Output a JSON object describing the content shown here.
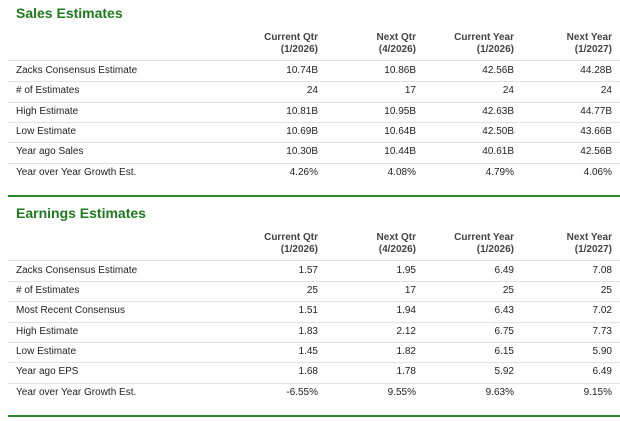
{
  "sections": [
    {
      "title": "Sales Estimates",
      "headers": [
        [
          "Current Qtr",
          "(1/2026)"
        ],
        [
          "Next Qtr",
          "(4/2026)"
        ],
        [
          "Current Year",
          "(1/2026)"
        ],
        [
          "Next Year",
          "(1/2027)"
        ]
      ],
      "rows": [
        [
          "Zacks Consensus Estimate",
          "10.74B",
          "10.86B",
          "42.56B",
          "44.28B"
        ],
        [
          "# of Estimates",
          "24",
          "17",
          "24",
          "24"
        ],
        [
          "High Estimate",
          "10.81B",
          "10.95B",
          "42.63B",
          "44.77B"
        ],
        [
          "Low Estimate",
          "10.69B",
          "10.64B",
          "42.50B",
          "43.66B"
        ],
        [
          "Year ago Sales",
          "10.30B",
          "10.44B",
          "40.61B",
          "42.56B"
        ],
        [
          "Year over Year Growth Est.",
          "4.26%",
          "4.08%",
          "4.79%",
          "4.06%"
        ]
      ]
    },
    {
      "title": "Earnings Estimates",
      "headers": [
        [
          "Current Qtr",
          "(1/2026)"
        ],
        [
          "Next Qtr",
          "(4/2026)"
        ],
        [
          "Current Year",
          "(1/2026)"
        ],
        [
          "Next Year",
          "(1/2027)"
        ]
      ],
      "rows": [
        [
          "Zacks Consensus Estimate",
          "1.57",
          "1.95",
          "6.49",
          "7.08"
        ],
        [
          "# of Estimates",
          "25",
          "17",
          "25",
          "25"
        ],
        [
          "Most Recent Consensus",
          "1.51",
          "1.94",
          "6.43",
          "7.02"
        ],
        [
          "High Estimate",
          "1.83",
          "2.12",
          "6.75",
          "7.73"
        ],
        [
          "Low Estimate",
          "1.45",
          "1.82",
          "6.15",
          "5.90"
        ],
        [
          "Year ago EPS",
          "1.68",
          "1.78",
          "5.92",
          "6.49"
        ],
        [
          "Year over Year Growth Est.",
          "-6.55%",
          "9.55%",
          "9.63%",
          "9.15%"
        ]
      ]
    }
  ]
}
